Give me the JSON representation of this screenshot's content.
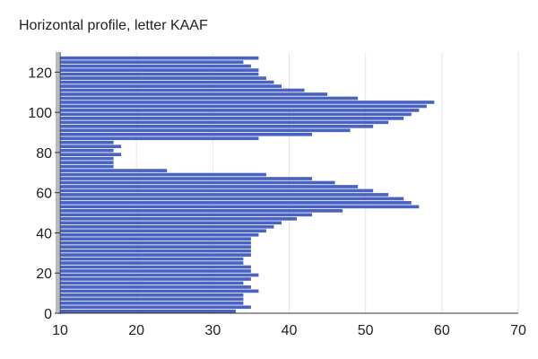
{
  "chart_data": {
    "type": "bar",
    "orientation": "horizontal",
    "title": "Horizontal profile, letter KAAF",
    "xlabel": "",
    "ylabel": "",
    "xlim": [
      10,
      70
    ],
    "ylim": [
      0,
      130
    ],
    "x_ticks": [
      10,
      20,
      30,
      40,
      50,
      60,
      70
    ],
    "y_ticks": [
      0,
      20,
      40,
      60,
      80,
      100,
      120
    ],
    "grid": "vertical",
    "bar_color": "#4a63c3",
    "rows_y": [
      1,
      3,
      5,
      7,
      9,
      11,
      13,
      15,
      17,
      19,
      21,
      23,
      25,
      27,
      29,
      31,
      33,
      35,
      37,
      39,
      41,
      43,
      45,
      47,
      49,
      51,
      53,
      55,
      57,
      59,
      61,
      63,
      65,
      67,
      69,
      71,
      73,
      75,
      77,
      79,
      81,
      83,
      85,
      87,
      89,
      91,
      93,
      95,
      97,
      99,
      101,
      103,
      105,
      107,
      109,
      111,
      113,
      115,
      117,
      119,
      121,
      123,
      125,
      127
    ],
    "values": [
      33,
      35,
      34,
      34,
      34,
      36,
      35,
      34,
      35,
      36,
      35,
      35,
      34,
      34,
      35,
      35,
      35,
      35,
      35,
      36,
      37,
      38,
      39,
      41,
      43,
      47,
      57,
      56,
      55,
      53,
      51,
      49,
      46,
      43,
      37,
      24,
      17,
      17,
      17,
      18,
      17,
      18,
      17,
      36,
      43,
      48,
      51,
      53,
      55,
      56,
      57,
      58,
      59,
      49,
      45,
      42,
      39,
      38,
      37,
      36,
      36,
      35,
      34,
      36
    ]
  }
}
